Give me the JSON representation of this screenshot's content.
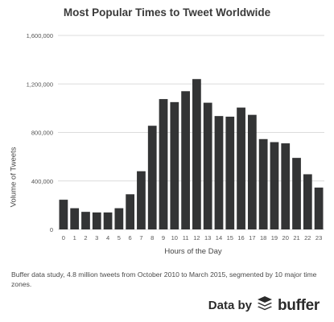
{
  "header": {
    "title": "Most Popular Times to Tweet Worldwide"
  },
  "chart_data": {
    "type": "bar",
    "title": "Most Popular Times to Tweet Worldwide",
    "xlabel": "Hours of the Day",
    "ylabel": "Volume of Tweets",
    "ylim": [
      0,
      1600000
    ],
    "yticks": [
      "0",
      "400,000",
      "800,000",
      "1,200,000",
      "1,600,000"
    ],
    "ytick_values": [
      0,
      400000,
      800000,
      1200000,
      1600000
    ],
    "grid": true,
    "legend": "none",
    "bar_color": "#333435",
    "categories": [
      "0",
      "1",
      "2",
      "3",
      "4",
      "5",
      "6",
      "7",
      "8",
      "9",
      "10",
      "11",
      "12",
      "13",
      "14",
      "15",
      "16",
      "17",
      "18",
      "19",
      "20",
      "21",
      "22",
      "23"
    ],
    "values": [
      245000,
      175000,
      145000,
      140000,
      140000,
      175000,
      290000,
      480000,
      855000,
      1075000,
      1050000,
      1140000,
      1240000,
      1045000,
      935000,
      930000,
      1005000,
      945000,
      745000,
      720000,
      710000,
      590000,
      455000,
      345000
    ]
  },
  "footer": {
    "caption": "Buffer data study, 4.8 million tweets from October 2010 to March 2015, segmented by 10 major time zones.",
    "data_by": "Data by",
    "logo_icon": "buffer-stack-icon",
    "logo_text": "buffer"
  }
}
